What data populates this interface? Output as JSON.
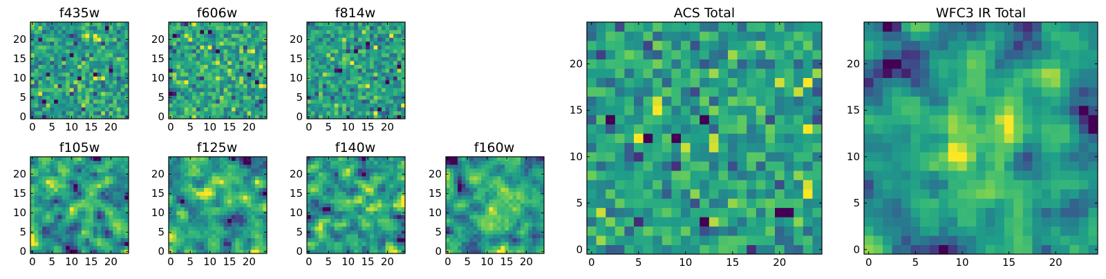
{
  "chart_data": [
    {
      "type": "heatmap",
      "title": "f435w",
      "grid": 25,
      "xlim": [
        -0.5,
        24.5
      ],
      "ylim": [
        -0.5,
        24.5
      ],
      "xticks": [
        0,
        5,
        10,
        15,
        20
      ],
      "yticks": [
        0,
        5,
        10,
        15,
        20
      ],
      "xlabel": "",
      "ylabel": "",
      "colormap": "viridis",
      "smoothing": 0,
      "bump": 0,
      "seed": 11
    },
    {
      "type": "heatmap",
      "title": "f606w",
      "grid": 25,
      "xlim": [
        -0.5,
        24.5
      ],
      "ylim": [
        -0.5,
        24.5
      ],
      "xticks": [
        0,
        5,
        10,
        15,
        20
      ],
      "yticks": [
        0,
        5,
        10,
        15,
        20
      ],
      "xlabel": "",
      "ylabel": "",
      "colormap": "viridis",
      "smoothing": 0,
      "bump": 0,
      "seed": 23
    },
    {
      "type": "heatmap",
      "title": "f814w",
      "grid": 25,
      "xlim": [
        -0.5,
        24.5
      ],
      "ylim": [
        -0.5,
        24.5
      ],
      "xticks": [
        0,
        5,
        10,
        15,
        20
      ],
      "yticks": [
        0,
        5,
        10,
        15,
        20
      ],
      "xlabel": "",
      "ylabel": "",
      "colormap": "viridis",
      "smoothing": 0,
      "bump": 0,
      "seed": 37
    },
    {
      "type": "heatmap",
      "title": "f105w",
      "grid": 25,
      "xlim": [
        -0.5,
        24.5
      ],
      "ylim": [
        -0.5,
        24.5
      ],
      "xticks": [
        0,
        5,
        10,
        15,
        20
      ],
      "yticks": [
        0,
        5,
        10,
        15,
        20
      ],
      "xlabel": "",
      "ylabel": "",
      "colormap": "viridis",
      "smoothing": 1,
      "bump": 0.2,
      "seed": 41
    },
    {
      "type": "heatmap",
      "title": "f125w",
      "grid": 25,
      "xlim": [
        -0.5,
        24.5
      ],
      "ylim": [
        -0.5,
        24.5
      ],
      "xticks": [
        0,
        5,
        10,
        15,
        20
      ],
      "yticks": [
        0,
        5,
        10,
        15,
        20
      ],
      "xlabel": "",
      "ylabel": "",
      "colormap": "viridis",
      "smoothing": 1,
      "bump": 0.2,
      "seed": 53
    },
    {
      "type": "heatmap",
      "title": "f140w",
      "grid": 25,
      "xlim": [
        -0.5,
        24.5
      ],
      "ylim": [
        -0.5,
        24.5
      ],
      "xticks": [
        0,
        5,
        10,
        15,
        20
      ],
      "yticks": [
        0,
        5,
        10,
        15,
        20
      ],
      "xlabel": "",
      "ylabel": "",
      "colormap": "viridis",
      "smoothing": 1,
      "bump": 0.3,
      "seed": 67
    },
    {
      "type": "heatmap",
      "title": "f160w",
      "grid": 25,
      "xlim": [
        -0.5,
        24.5
      ],
      "ylim": [
        -0.5,
        24.5
      ],
      "xticks": [
        0,
        5,
        10,
        15,
        20
      ],
      "yticks": [
        0,
        5,
        10,
        15,
        20
      ],
      "xlabel": "",
      "ylabel": "",
      "colormap": "viridis",
      "smoothing": 1,
      "bump": 0.8,
      "seed": 79
    },
    {
      "type": "heatmap",
      "title": "ACS Total",
      "grid": 25,
      "xlim": [
        -0.5,
        24.5
      ],
      "ylim": [
        -0.5,
        24.5
      ],
      "xticks": [
        0,
        5,
        10,
        15,
        20
      ],
      "yticks": [
        0,
        5,
        10,
        15,
        20
      ],
      "xlabel": "",
      "ylabel": "",
      "colormap": "viridis",
      "smoothing": 0,
      "bump": 0.1,
      "seed": 97
    },
    {
      "type": "heatmap",
      "title": "WFC3 IR Total",
      "grid": 25,
      "xlim": [
        -0.5,
        24.5
      ],
      "ylim": [
        -0.5,
        24.5
      ],
      "xticks": [
        0,
        5,
        10,
        15,
        20
      ],
      "yticks": [
        0,
        5,
        10,
        15,
        20
      ],
      "xlabel": "",
      "ylabel": "",
      "colormap": "viridis",
      "smoothing": 1,
      "bump": 0.9,
      "seed": 131
    }
  ]
}
